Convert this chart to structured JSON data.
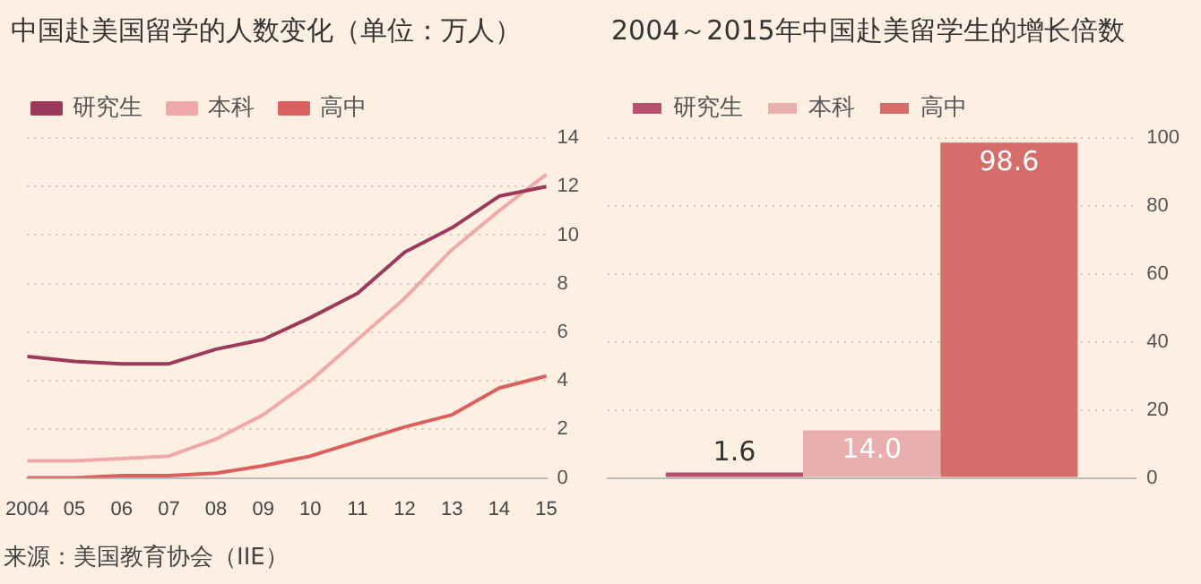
{
  "chart_data": [
    {
      "type": "line",
      "title": "中国赴美国留学的人数变化（单位：万人）",
      "categories": [
        "2004",
        "05",
        "06",
        "07",
        "08",
        "09",
        "10",
        "11",
        "12",
        "13",
        "14",
        "15"
      ],
      "series": [
        {
          "name": "研究生",
          "color": "#9b3a5c",
          "values": [
            5.0,
            4.8,
            4.7,
            4.7,
            5.3,
            5.7,
            6.6,
            7.6,
            9.3,
            10.3,
            11.6,
            12.0
          ]
        },
        {
          "name": "本科",
          "color": "#efa9ab",
          "values": [
            0.7,
            0.7,
            0.8,
            0.9,
            1.6,
            2.6,
            4.0,
            5.7,
            7.4,
            9.4,
            11.0,
            12.5
          ]
        },
        {
          "name": "高中",
          "color": "#d9605e",
          "values": [
            0.0,
            0.0,
            0.1,
            0.1,
            0.2,
            0.5,
            0.9,
            1.5,
            2.1,
            2.6,
            3.7,
            4.2
          ]
        }
      ],
      "ylim": [
        0,
        14
      ],
      "yticks": [
        0,
        2,
        4,
        6,
        8,
        10,
        12,
        14
      ],
      "grid": "y",
      "legend": "top left",
      "marker": "none",
      "line_style": "solid",
      "annotations": [
        "来源：美国教育协会（IIE）"
      ]
    },
    {
      "type": "bar",
      "title": "2004～2015年中国赴美留学生的增长倍数",
      "categories": [
        null
      ],
      "series": [
        {
          "name": "研究生",
          "color": "#b5506f",
          "values": [
            1.6
          ],
          "value_labels": [
            "1.6"
          ]
        },
        {
          "name": "本科",
          "color": "#e9aeae",
          "values": [
            14.0
          ],
          "value_labels": [
            "14.0"
          ]
        },
        {
          "name": "高中",
          "color": "#d66d6b",
          "values": [
            98.6
          ],
          "value_labels": [
            "98.6"
          ]
        }
      ],
      "ylim": [
        0,
        100
      ],
      "yticks": [
        0,
        20,
        40,
        60,
        80,
        100
      ],
      "grid": "y",
      "legend": "top left"
    }
  ]
}
